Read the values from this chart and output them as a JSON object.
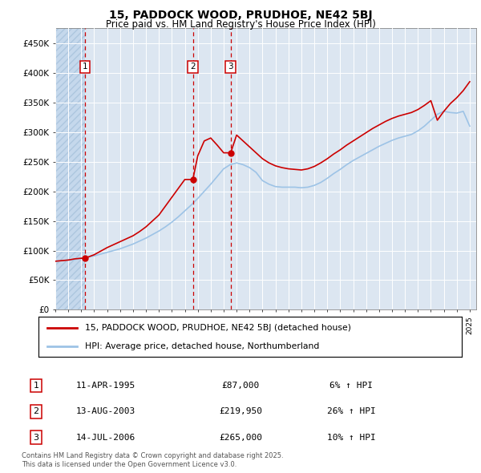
{
  "title": "15, PADDOCK WOOD, PRUDHOE, NE42 5BJ",
  "subtitle": "Price paid vs. HM Land Registry's House Price Index (HPI)",
  "legend_line1": "15, PADDOCK WOOD, PRUDHOE, NE42 5BJ (detached house)",
  "legend_line2": "HPI: Average price, detached house, Northumberland",
  "transactions": [
    {
      "num": 1,
      "date": "11-APR-1995",
      "price": 87000,
      "year": 1995.28,
      "hpi_pct": "6%"
    },
    {
      "num": 2,
      "date": "13-AUG-2003",
      "price": 219950,
      "year": 2003.62,
      "hpi_pct": "26%"
    },
    {
      "num": 3,
      "date": "14-JUL-2006",
      "price": 265000,
      "year": 2006.54,
      "hpi_pct": "10%"
    }
  ],
  "footnote1": "Contains HM Land Registry data © Crown copyright and database right 2025.",
  "footnote2": "This data is licensed under the Open Government Licence v3.0.",
  "xlim": [
    1993.0,
    2025.5
  ],
  "ylim": [
    0,
    475000
  ],
  "yticks": [
    0,
    50000,
    100000,
    150000,
    200000,
    250000,
    300000,
    350000,
    400000,
    450000
  ],
  "ytick_labels": [
    "£0",
    "£50K",
    "£100K",
    "£150K",
    "£200K",
    "£250K",
    "£300K",
    "£350K",
    "£400K",
    "£450K"
  ],
  "background_color": "#ffffff",
  "plot_bg_color": "#dce6f1",
  "hatch_color": "#c5d8ec",
  "grid_color": "#ffffff",
  "red_color": "#cc0000",
  "blue_color": "#9dc3e6",
  "hpi_years": [
    1993,
    1993.5,
    1994,
    1994.5,
    1995,
    1995.5,
    1996,
    1996.5,
    1997,
    1997.5,
    1998,
    1998.5,
    1999,
    1999.5,
    2000,
    2000.5,
    2001,
    2001.5,
    2002,
    2002.5,
    2003,
    2003.5,
    2004,
    2004.5,
    2005,
    2005.5,
    2006,
    2006.5,
    2007,
    2007.5,
    2008,
    2008.5,
    2009,
    2009.5,
    2010,
    2010.5,
    2011,
    2011.5,
    2012,
    2012.5,
    2013,
    2013.5,
    2014,
    2014.5,
    2015,
    2015.5,
    2016,
    2016.5,
    2017,
    2017.5,
    2018,
    2018.5,
    2019,
    2019.5,
    2020,
    2020.5,
    2021,
    2021.5,
    2022,
    2022.5,
    2023,
    2023.5,
    2024,
    2024.5,
    2025
  ],
  "hpi_values": [
    82000,
    83000,
    84000,
    85000,
    87000,
    89000,
    91000,
    94000,
    97000,
    100000,
    103000,
    107000,
    111000,
    116000,
    121000,
    127000,
    133000,
    140000,
    148000,
    157000,
    167000,
    177000,
    188000,
    200000,
    212000,
    225000,
    238000,
    245000,
    248000,
    245000,
    240000,
    232000,
    218000,
    212000,
    208000,
    207000,
    207000,
    207000,
    206000,
    207000,
    210000,
    215000,
    222000,
    230000,
    237000,
    245000,
    252000,
    258000,
    264000,
    270000,
    276000,
    281000,
    286000,
    290000,
    293000,
    296000,
    302000,
    310000,
    320000,
    330000,
    335000,
    333000,
    332000,
    335000,
    310000
  ],
  "price_years": [
    1993,
    1993.5,
    1994,
    1994.5,
    1995,
    1995.28,
    1996,
    1996.5,
    1997,
    1997.5,
    1998,
    1998.5,
    1999,
    1999.5,
    2000,
    2000.5,
    2001,
    2001.5,
    2002,
    2002.5,
    2003,
    2003.62,
    2004,
    2004.5,
    2005,
    2005.5,
    2006,
    2006.54,
    2007,
    2007.5,
    2008,
    2008.5,
    2009,
    2009.5,
    2010,
    2010.5,
    2011,
    2011.5,
    2012,
    2012.5,
    2013,
    2013.5,
    2014,
    2014.5,
    2015,
    2015.5,
    2016,
    2016.5,
    2017,
    2017.5,
    2018,
    2018.5,
    2019,
    2019.5,
    2020,
    2020.5,
    2021,
    2021.5,
    2022,
    2022.5,
    2023,
    2023.5,
    2024,
    2024.5,
    2025
  ],
  "price_values": [
    82000,
    83000,
    84000,
    86000,
    87000,
    87000,
    93000,
    99000,
    105000,
    110000,
    115000,
    120000,
    125000,
    132000,
    140000,
    150000,
    160000,
    175000,
    190000,
    205000,
    219950,
    219950,
    260000,
    285000,
    290000,
    278000,
    265000,
    265000,
    295000,
    285000,
    275000,
    265000,
    255000,
    248000,
    243000,
    240000,
    238000,
    237000,
    236000,
    238000,
    242000,
    248000,
    255000,
    263000,
    270000,
    278000,
    285000,
    292000,
    299000,
    306000,
    312000,
    318000,
    323000,
    327000,
    330000,
    333000,
    338000,
    345000,
    353000,
    320000,
    335000,
    348000,
    358000,
    370000,
    385000
  ]
}
